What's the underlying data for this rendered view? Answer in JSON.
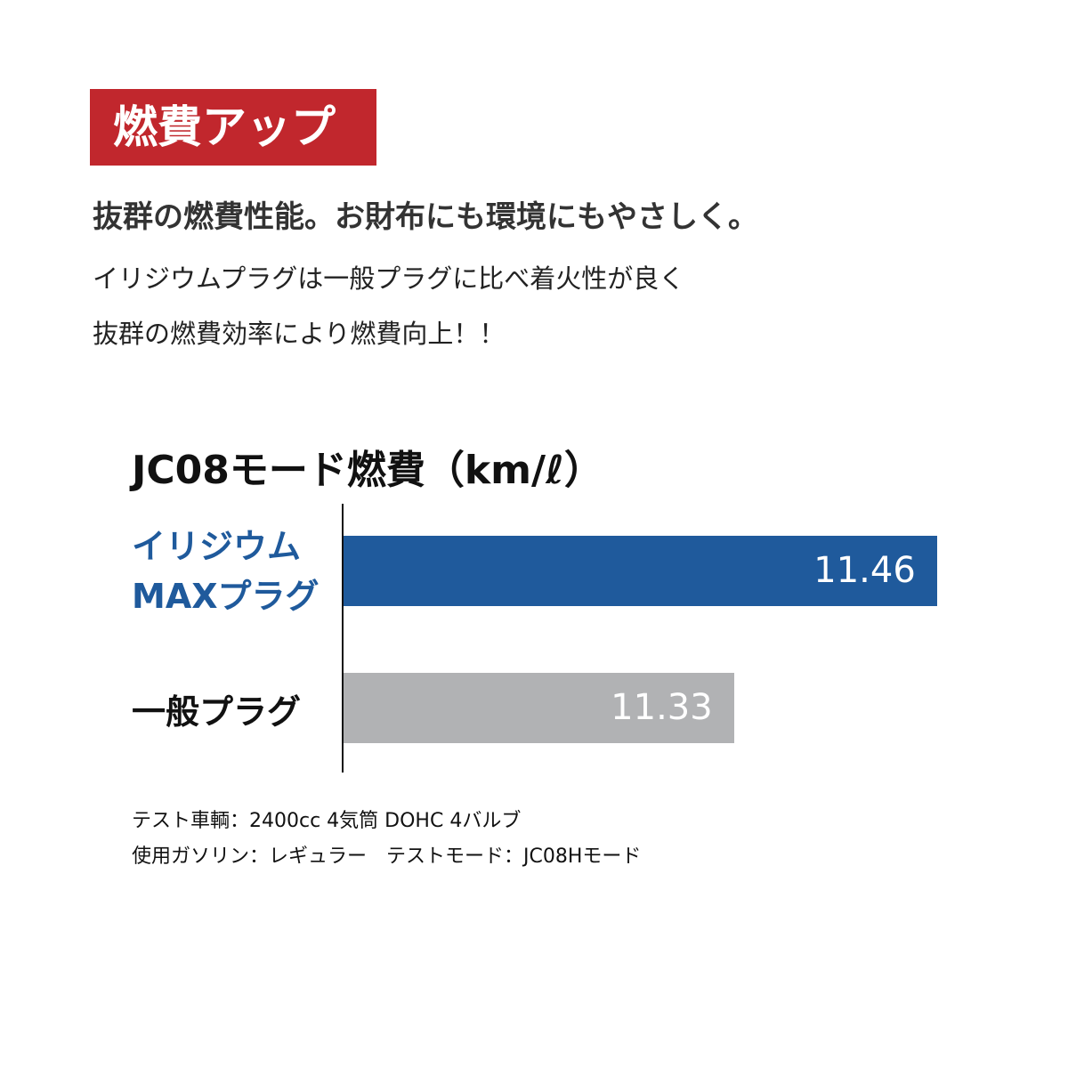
{
  "badge": {
    "label": "燃費アップ",
    "color": "#c1272d"
  },
  "headline": "抜群の燃費性能。お財布にも環境にもやさしく。",
  "body": [
    "イリジウムプラグは一般プラグに比べ着火性が良く",
    "抜群の燃費効率により燃費向上！！"
  ],
  "chart_data": {
    "type": "bar",
    "orientation": "horizontal",
    "title": "JC08モード燃費（km/ℓ）",
    "categories": [
      "イリジウム\nMAXプラグ",
      "一般プラグ"
    ],
    "category_lines": [
      [
        "イリジウム",
        "MAXプラグ"
      ],
      [
        "一般プラグ"
      ]
    ],
    "values": [
      11.46,
      11.33
    ],
    "data_labels": [
      "11.46",
      "11.33"
    ],
    "colors": [
      "#1f5a9c",
      "#b1b2b4"
    ],
    "label_colors": [
      "#1f5a9c",
      "#111111"
    ],
    "xlim": [
      11.08,
      11.5
    ],
    "grid": false,
    "legend": "none"
  },
  "notes": [
    "テスト車輌：2400cc 4気筒 DOHC 4バルブ",
    "使用ガソリン：レギュラー　テストモード：JC08Hモード"
  ]
}
